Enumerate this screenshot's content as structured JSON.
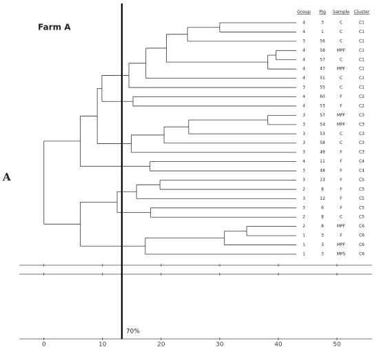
{
  "chart_data": {
    "type": "dendrogram",
    "title": "Farm A",
    "panel_label": "A",
    "columns": [
      "Group",
      "Pig",
      "Sample",
      "Cluster"
    ],
    "leaves": [
      {
        "group": 4,
        "pig": 3,
        "sample": "C",
        "cluster": "C1"
      },
      {
        "group": 4,
        "pig": 1,
        "sample": "C",
        "cluster": "C1"
      },
      {
        "group": 3,
        "pig": 56,
        "sample": "C",
        "cluster": "C1"
      },
      {
        "group": 4,
        "pig": 58,
        "sample": "MPF",
        "cluster": "C1"
      },
      {
        "group": 4,
        "pig": 57,
        "sample": "C",
        "cluster": "C1"
      },
      {
        "group": 4,
        "pig": 47,
        "sample": "MPF",
        "cluster": "C1"
      },
      {
        "group": 4,
        "pig": 51,
        "sample": "C",
        "cluster": "C1"
      },
      {
        "group": 3,
        "pig": 55,
        "sample": "C",
        "cluster": "C1"
      },
      {
        "group": 4,
        "pig": 60,
        "sample": "F",
        "cluster": "C2"
      },
      {
        "group": 4,
        "pig": 53,
        "sample": "F",
        "cluster": "C2"
      },
      {
        "group": 3,
        "pig": 57,
        "sample": "MPF",
        "cluster": "C3"
      },
      {
        "group": 3,
        "pig": 54,
        "sample": "MPF",
        "cluster": "C3"
      },
      {
        "group": 3,
        "pig": 53,
        "sample": "C",
        "cluster": "C3"
      },
      {
        "group": 3,
        "pig": 58,
        "sample": "C",
        "cluster": "C3"
      },
      {
        "group": 3,
        "pig": 49,
        "sample": "F",
        "cluster": "C3"
      },
      {
        "group": 4,
        "pig": 11,
        "sample": "F",
        "cluster": "C4"
      },
      {
        "group": 3,
        "pig": 48,
        "sample": "F",
        "cluster": "C4"
      },
      {
        "group": 3,
        "pig": 13,
        "sample": "F",
        "cluster": "C5"
      },
      {
        "group": 2,
        "pig": 8,
        "sample": "F",
        "cluster": "C5"
      },
      {
        "group": 3,
        "pig": 12,
        "sample": "F",
        "cluster": "C5"
      },
      {
        "group": 3,
        "pig": 6,
        "sample": "F",
        "cluster": "C5"
      },
      {
        "group": 2,
        "pig": 8,
        "sample": "C",
        "cluster": "C5"
      },
      {
        "group": 2,
        "pig": 8,
        "sample": "MPF",
        "cluster": "C6"
      },
      {
        "group": 1,
        "pig": 3,
        "sample": "F",
        "cluster": "C6"
      },
      {
        "group": 1,
        "pig": 3,
        "sample": "MPF",
        "cluster": "C6"
      },
      {
        "group": 1,
        "pig": 3,
        "sample": "MPS",
        "cluster": "C6"
      }
    ],
    "merges": [
      {
        "height": 30,
        "leaves": [
          0,
          1
        ]
      },
      {
        "height": 24.5,
        "leaves": [
          2
        ],
        "nodes": [
          0
        ]
      },
      {
        "height": 39.6,
        "leaves": [
          3,
          4
        ]
      },
      {
        "height": 38.2,
        "leaves": [
          5
        ],
        "nodes": [
          2
        ]
      },
      {
        "height": 20.9,
        "nodes": [
          1,
          3
        ]
      },
      {
        "height": 17.4,
        "leaves": [
          6
        ],
        "nodes": [
          4
        ]
      },
      {
        "height": 14.5,
        "leaves": [
          7
        ],
        "nodes": [
          5
        ]
      },
      {
        "height": 15.2,
        "leaves": [
          8,
          9
        ]
      },
      {
        "height": 9.9,
        "nodes": [
          6,
          7
        ]
      },
      {
        "height": 38.2,
        "leaves": [
          10,
          11
        ]
      },
      {
        "height": 24.7,
        "leaves": [
          12
        ],
        "nodes": [
          9
        ]
      },
      {
        "height": 20.5,
        "leaves": [
          13
        ],
        "nodes": [
          10
        ]
      },
      {
        "height": 14.9,
        "leaves": [
          14
        ],
        "nodes": [
          11
        ]
      },
      {
        "height": 9.1,
        "nodes": [
          8,
          12
        ]
      },
      {
        "height": 18.1,
        "leaves": [
          15,
          16
        ]
      },
      {
        "height": 6.2,
        "nodes": [
          13,
          14
        ]
      },
      {
        "height": 19.8,
        "leaves": [
          17,
          18
        ]
      },
      {
        "height": 15.8,
        "leaves": [
          19
        ],
        "nodes": [
          16
        ]
      },
      {
        "height": 18.2,
        "leaves": [
          20,
          21
        ]
      },
      {
        "height": 12.5,
        "nodes": [
          17,
          18
        ]
      },
      {
        "height": 34.6,
        "leaves": [
          22,
          23
        ]
      },
      {
        "height": 30.8,
        "leaves": [
          24
        ],
        "nodes": [
          20
        ]
      },
      {
        "height": 17.3,
        "leaves": [
          25
        ],
        "nodes": [
          21
        ]
      },
      {
        "height": 6.2,
        "nodes": [
          19,
          22
        ]
      },
      {
        "height": 0,
        "nodes": [
          15,
          23
        ]
      }
    ],
    "xlim": [
      -4.2,
      56
    ],
    "xticks": [
      0,
      10,
      20,
      30,
      40,
      50
    ],
    "cutoff": {
      "value": 13.3,
      "label": "70%"
    }
  }
}
